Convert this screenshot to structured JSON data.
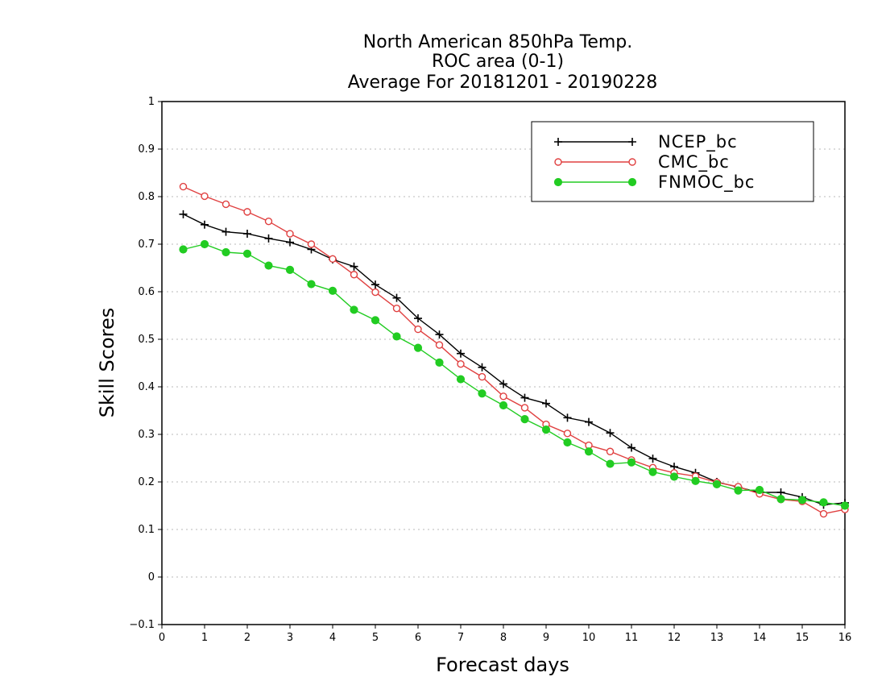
{
  "chart_data": {
    "type": "line",
    "title": [
      "North American 850hPa Temp.",
      "ROC area (0-1)",
      "Average For 20181201 - 20190228"
    ],
    "xlabel": "Forecast days",
    "ylabel": "Skill Scores",
    "xlim": [
      0,
      16
    ],
    "ylim": [
      -0.1,
      1
    ],
    "xticks": [
      0,
      1,
      2,
      3,
      4,
      5,
      6,
      7,
      8,
      9,
      10,
      11,
      12,
      13,
      14,
      15,
      16
    ],
    "yticks": [
      -0.1,
      0,
      0.1,
      0.2,
      0.3,
      0.4,
      0.5,
      0.6,
      0.7,
      0.8,
      0.9,
      1
    ],
    "ytick_labels": [
      "−0.1",
      "0",
      "0.1",
      "0.2",
      "0.3",
      "0.4",
      "0.5",
      "0.6",
      "0.7",
      "0.8",
      "0.9",
      "1"
    ],
    "grid": "horizontal dotted",
    "legend_position": "top-right",
    "x": [
      0.5,
      1,
      1.5,
      2,
      2.5,
      3,
      3.5,
      4,
      4.5,
      5,
      5.5,
      6,
      6.5,
      7,
      7.5,
      8,
      8.5,
      9,
      9.5,
      10,
      10.5,
      11,
      11.5,
      12,
      12.5,
      13,
      13.5,
      14,
      14.5,
      15,
      15.5,
      16
    ],
    "series": [
      {
        "name": "NCEP_bc",
        "color": "#000000",
        "marker": "plus",
        "values": [
          0.763,
          0.741,
          0.726,
          0.722,
          0.712,
          0.704,
          0.689,
          0.668,
          0.653,
          0.615,
          0.587,
          0.544,
          0.51,
          0.47,
          0.441,
          0.406,
          0.377,
          0.365,
          0.335,
          0.326,
          0.303,
          0.272,
          0.249,
          0.232,
          0.219,
          0.2,
          0.189,
          0.178,
          0.178,
          0.168,
          0.152,
          0.156
        ]
      },
      {
        "name": "CMC_bc",
        "color": "#e04040",
        "marker": "open-circle",
        "values": [
          0.821,
          0.801,
          0.784,
          0.768,
          0.748,
          0.722,
          0.7,
          0.669,
          0.636,
          0.599,
          0.565,
          0.521,
          0.488,
          0.448,
          0.421,
          0.38,
          0.356,
          0.321,
          0.302,
          0.277,
          0.264,
          0.246,
          0.23,
          0.219,
          0.212,
          0.199,
          0.19,
          0.175,
          0.163,
          0.159,
          0.133,
          0.142
        ]
      },
      {
        "name": "FNMOC_bc",
        "color": "#22cc22",
        "marker": "filled-circle",
        "values": [
          0.689,
          0.7,
          0.683,
          0.68,
          0.655,
          0.646,
          0.616,
          0.602,
          0.562,
          0.54,
          0.506,
          0.482,
          0.451,
          0.416,
          0.386,
          0.361,
          0.332,
          0.31,
          0.283,
          0.264,
          0.238,
          0.241,
          0.221,
          0.211,
          0.202,
          0.195,
          0.182,
          0.183,
          0.164,
          0.162,
          0.157,
          0.15
        ]
      }
    ]
  }
}
